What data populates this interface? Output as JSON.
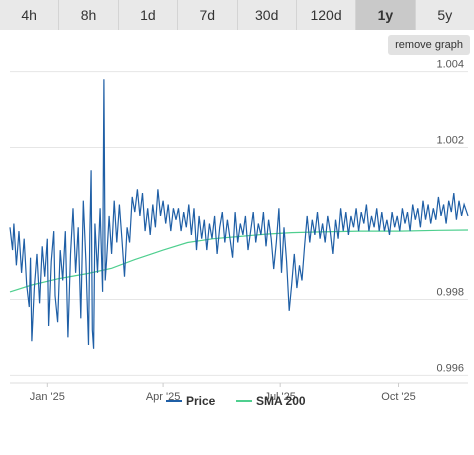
{
  "tabs": [
    {
      "label": "4h"
    },
    {
      "label": "8h"
    },
    {
      "label": "1d"
    },
    {
      "label": "7d"
    },
    {
      "label": "30d"
    },
    {
      "label": "120d"
    },
    {
      "label": "1y",
      "active": true
    },
    {
      "label": "5y"
    }
  ],
  "remove_graph_label": "remove graph",
  "colors": {
    "price": "#1f5fa6",
    "sma": "#4fcf8f",
    "grid": "#e6e6e6",
    "active_tab": "#c9c9c9"
  },
  "chart_data": {
    "type": "line",
    "x_start": "2024-12-03",
    "x_end": "2025-11-24",
    "xticks": [
      {
        "date": "2025-01-01",
        "label": "Jan '25"
      },
      {
        "date": "2025-04-01",
        "label": "Apr '25"
      },
      {
        "date": "2025-07-01",
        "label": "Jul '25"
      },
      {
        "date": "2025-10-01",
        "label": "Oct '25"
      }
    ],
    "ylim": [
      0.9958,
      1.0042
    ],
    "yticks": [
      0.996,
      0.998,
      1.002,
      1.004
    ],
    "ytick_labels": [
      "0.996",
      "0.998",
      "1.002",
      "1.004"
    ],
    "grid": true,
    "legend": "bottom-center",
    "series": [
      {
        "name": "Price",
        "points": [
          [
            "2024-12-03",
            0.9999
          ],
          [
            "2024-12-05",
            0.9993
          ],
          [
            "2024-12-06",
            1.0
          ],
          [
            "2024-12-08",
            0.9989
          ],
          [
            "2024-12-10",
            0.9998
          ],
          [
            "2024-12-12",
            0.9987
          ],
          [
            "2024-12-14",
            0.9996
          ],
          [
            "2024-12-16",
            0.9984
          ],
          [
            "2024-12-18",
            0.9978
          ],
          [
            "2024-12-19",
            0.9991
          ],
          [
            "2024-12-20",
            0.9969
          ],
          [
            "2024-12-22",
            0.9983
          ],
          [
            "2024-12-24",
            0.9992
          ],
          [
            "2024-12-26",
            0.9979
          ],
          [
            "2024-12-28",
            0.9994
          ],
          [
            "2024-12-30",
            0.9986
          ],
          [
            "2025-01-01",
            0.9996
          ],
          [
            "2025-01-02",
            0.9973
          ],
          [
            "2025-01-04",
            0.999
          ],
          [
            "2025-01-06",
            0.9998
          ],
          [
            "2025-01-07",
            0.9981
          ],
          [
            "2025-01-09",
            0.9974
          ],
          [
            "2025-01-11",
            0.9993
          ],
          [
            "2025-01-13",
            0.9985
          ],
          [
            "2025-01-15",
            0.9998
          ],
          [
            "2025-01-17",
            0.997
          ],
          [
            "2025-01-19",
            0.9992
          ],
          [
            "2025-01-21",
            1.0004
          ],
          [
            "2025-01-23",
            0.9987
          ],
          [
            "2025-01-25",
            0.9999
          ],
          [
            "2025-01-27",
            0.9975
          ],
          [
            "2025-01-29",
            1.0006
          ],
          [
            "2025-01-31",
            0.999
          ],
          [
            "2025-02-02",
            0.9968
          ],
          [
            "2025-02-03",
            0.9997
          ],
          [
            "2025-02-04",
            1.0014
          ],
          [
            "2025-02-05",
            0.9972
          ],
          [
            "2025-02-06",
            0.9967
          ],
          [
            "2025-02-07",
            1.0
          ],
          [
            "2025-02-09",
            0.9987
          ],
          [
            "2025-02-11",
            1.0004
          ],
          [
            "2025-02-13",
            0.9982
          ],
          [
            "2025-02-14",
            1.0038
          ],
          [
            "2025-02-15",
            0.9985
          ],
          [
            "2025-02-16",
            0.999
          ],
          [
            "2025-02-18",
            1.0002
          ],
          [
            "2025-02-20",
            0.9992
          ],
          [
            "2025-02-22",
            1.0006
          ],
          [
            "2025-02-24",
            0.9995
          ],
          [
            "2025-02-26",
            1.0005
          ],
          [
            "2025-02-28",
            0.9996
          ],
          [
            "2025-03-02",
            0.9986
          ],
          [
            "2025-03-04",
            0.9999
          ],
          [
            "2025-03-06",
            0.9995
          ],
          [
            "2025-03-08",
            1.0007
          ],
          [
            "2025-03-10",
            1.0003
          ],
          [
            "2025-03-12",
            1.0009
          ],
          [
            "2025-03-14",
            1.0002
          ],
          [
            "2025-03-16",
            1.0008
          ],
          [
            "2025-03-18",
            0.9998
          ],
          [
            "2025-03-20",
            1.0004
          ],
          [
            "2025-03-22",
            0.9997
          ],
          [
            "2025-03-24",
            1.0005
          ],
          [
            "2025-03-26",
            0.9999
          ],
          [
            "2025-03-28",
            1.0009
          ],
          [
            "2025-03-30",
            1.0002
          ],
          [
            "2025-04-01",
            1.0006
          ],
          [
            "2025-04-03",
            1.0
          ],
          [
            "2025-04-05",
            1.0005
          ],
          [
            "2025-04-07",
            0.9998
          ],
          [
            "2025-04-09",
            1.0004
          ],
          [
            "2025-04-11",
            1.0001
          ],
          [
            "2025-04-13",
            1.0004
          ],
          [
            "2025-04-15",
            0.9998
          ],
          [
            "2025-04-17",
            1.0003
          ],
          [
            "2025-04-19",
            0.9999
          ],
          [
            "2025-04-21",
            1.0005
          ],
          [
            "2025-04-23",
            0.9997
          ],
          [
            "2025-04-25",
            1.0004
          ],
          [
            "2025-04-27",
            0.9993
          ],
          [
            "2025-04-29",
            1.0002
          ],
          [
            "2025-05-01",
            0.9996
          ],
          [
            "2025-05-03",
            1.0001
          ],
          [
            "2025-05-05",
            0.9993
          ],
          [
            "2025-05-07",
            1.0
          ],
          [
            "2025-05-09",
            0.9996
          ],
          [
            "2025-05-11",
            1.0002
          ],
          [
            "2025-05-13",
            0.9992
          ],
          [
            "2025-05-15",
            0.9999
          ],
          [
            "2025-05-17",
            1.0003
          ],
          [
            "2025-05-19",
            0.9995
          ],
          [
            "2025-05-21",
            1.0001
          ],
          [
            "2025-05-23",
            0.9996
          ],
          [
            "2025-05-25",
            0.9991
          ],
          [
            "2025-05-27",
            1.0003
          ],
          [
            "2025-05-29",
            0.9995
          ],
          [
            "2025-05-31",
            1.0
          ],
          [
            "2025-06-02",
            0.9997
          ],
          [
            "2025-06-04",
            1.0002
          ],
          [
            "2025-06-06",
            0.9993
          ],
          [
            "2025-06-08",
            0.9998
          ],
          [
            "2025-06-10",
            1.0003
          ],
          [
            "2025-06-12",
            0.9995
          ],
          [
            "2025-06-14",
            1.0
          ],
          [
            "2025-06-16",
            0.9997
          ],
          [
            "2025-06-18",
            1.0003
          ],
          [
            "2025-06-20",
            0.9994
          ],
          [
            "2025-06-22",
            1.0001
          ],
          [
            "2025-06-24",
            0.9996
          ],
          [
            "2025-06-26",
            0.9988
          ],
          [
            "2025-06-28",
            0.9995
          ],
          [
            "2025-06-30",
            1.0004
          ],
          [
            "2025-07-02",
            0.9987
          ],
          [
            "2025-07-04",
            0.9999
          ],
          [
            "2025-07-06",
            0.999
          ],
          [
            "2025-07-08",
            0.9977
          ],
          [
            "2025-07-10",
            0.9984
          ],
          [
            "2025-07-12",
            0.9992
          ],
          [
            "2025-07-14",
            0.9983
          ],
          [
            "2025-07-16",
            0.9989
          ],
          [
            "2025-07-18",
            0.9985
          ],
          [
            "2025-07-20",
            0.9994
          ],
          [
            "2025-07-22",
            1.0002
          ],
          [
            "2025-07-24",
            0.9995
          ],
          [
            "2025-07-26",
            1.0001
          ],
          [
            "2025-07-28",
            0.9997
          ],
          [
            "2025-07-30",
            1.0003
          ],
          [
            "2025-08-01",
            0.9996
          ],
          [
            "2025-08-03",
            1.0
          ],
          [
            "2025-08-05",
            0.9995
          ],
          [
            "2025-08-07",
            1.0002
          ],
          [
            "2025-08-09",
            0.9998
          ],
          [
            "2025-08-11",
            0.9992
          ],
          [
            "2025-08-13",
            1.0001
          ],
          [
            "2025-08-15",
            0.9996
          ],
          [
            "2025-08-17",
            1.0004
          ],
          [
            "2025-08-19",
            0.9998
          ],
          [
            "2025-08-21",
            1.0003
          ],
          [
            "2025-08-23",
            0.9997
          ],
          [
            "2025-08-25",
            1.0002
          ],
          [
            "2025-08-27",
            0.9999
          ],
          [
            "2025-08-29",
            1.0004
          ],
          [
            "2025-08-31",
            0.9998
          ],
          [
            "2025-09-02",
            1.0003
          ],
          [
            "2025-09-04",
            1.0
          ],
          [
            "2025-09-06",
            1.0005
          ],
          [
            "2025-09-08",
            0.9998
          ],
          [
            "2025-09-10",
            1.0002
          ],
          [
            "2025-09-12",
            0.9999
          ],
          [
            "2025-09-14",
            1.0004
          ],
          [
            "2025-09-16",
            0.9998
          ],
          [
            "2025-09-18",
            1.0003
          ],
          [
            "2025-09-20",
            0.9998
          ],
          [
            "2025-09-22",
            1.0001
          ],
          [
            "2025-09-24",
            0.9997
          ],
          [
            "2025-09-26",
            1.0003
          ],
          [
            "2025-09-28",
            0.9999
          ],
          [
            "2025-09-30",
            1.0002
          ],
          [
            "2025-10-02",
            0.9998
          ],
          [
            "2025-10-04",
            1.0004
          ],
          [
            "2025-10-06",
            1.0
          ],
          [
            "2025-10-08",
            1.0003
          ],
          [
            "2025-10-10",
            0.9998
          ],
          [
            "2025-10-12",
            1.0005
          ],
          [
            "2025-10-14",
            1.0001
          ],
          [
            "2025-10-16",
            1.0004
          ],
          [
            "2025-10-18",
            0.9999
          ],
          [
            "2025-10-20",
            1.0006
          ],
          [
            "2025-10-22",
            1.0001
          ],
          [
            "2025-10-24",
            1.0005
          ],
          [
            "2025-10-26",
            1.0
          ],
          [
            "2025-10-28",
            1.0004
          ],
          [
            "2025-10-30",
            1.0001
          ],
          [
            "2025-11-01",
            1.0007
          ],
          [
            "2025-11-03",
            1.0002
          ],
          [
            "2025-11-05",
            1.0005
          ],
          [
            "2025-11-07",
            1.0
          ],
          [
            "2025-11-09",
            1.0006
          ],
          [
            "2025-11-11",
            1.0003
          ],
          [
            "2025-11-13",
            1.0008
          ],
          [
            "2025-11-15",
            1.0001
          ],
          [
            "2025-11-17",
            1.0006
          ],
          [
            "2025-11-19",
            1.0002
          ],
          [
            "2025-11-21",
            1.0005
          ],
          [
            "2025-11-24",
            1.0002
          ]
        ]
      },
      {
        "name": "SMA 200",
        "points": [
          [
            "2024-12-03",
            0.9982
          ],
          [
            "2024-12-20",
            0.99838
          ],
          [
            "2025-01-10",
            0.99855
          ],
          [
            "2025-02-01",
            0.99868
          ],
          [
            "2025-02-20",
            0.99882
          ],
          [
            "2025-03-10",
            0.99905
          ],
          [
            "2025-04-01",
            0.9993
          ],
          [
            "2025-04-20",
            0.9995
          ],
          [
            "2025-05-10",
            0.9996
          ],
          [
            "2025-05-31",
            0.99966
          ],
          [
            "2025-06-20",
            0.99972
          ],
          [
            "2025-07-10",
            0.99976
          ],
          [
            "2025-08-01",
            0.99978
          ],
          [
            "2025-09-01",
            0.9998
          ],
          [
            "2025-10-01",
            0.9998
          ],
          [
            "2025-11-01",
            0.99982
          ],
          [
            "2025-11-24",
            0.99983
          ]
        ]
      }
    ]
  }
}
